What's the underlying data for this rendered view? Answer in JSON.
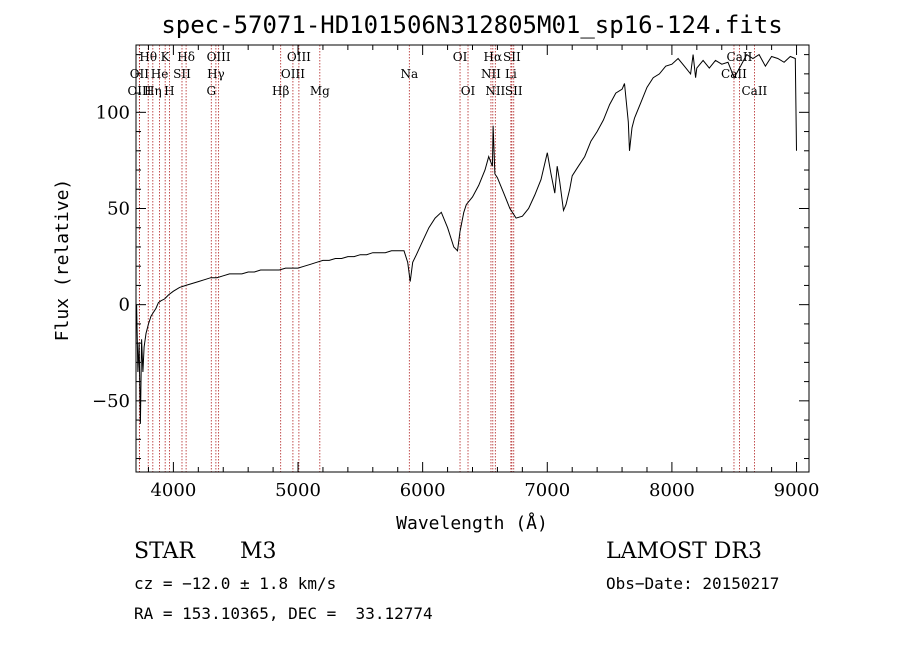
{
  "chart_data": {
    "type": "line",
    "title": "spec-57071-HD101506N312805M01_sp16-124.fits",
    "xlabel": "Wavelength (Å)",
    "ylabel": "Flux (relative)",
    "xlim": [
      3700,
      9100
    ],
    "ylim": [
      -87,
      135
    ],
    "x_ticks": [
      4000,
      5000,
      6000,
      7000,
      8000,
      9000
    ],
    "y_ticks": [
      -50,
      0,
      50,
      100
    ],
    "grid": false,
    "series": [
      {
        "color": "#000000",
        "x": [
          3705,
          3715,
          3725,
          3735,
          3745,
          3755,
          3765,
          3780,
          3800,
          3820,
          3840,
          3860,
          3880,
          3900,
          3930,
          3960,
          4000,
          4050,
          4100,
          4150,
          4200,
          4250,
          4300,
          4350,
          4400,
          4450,
          4500,
          4550,
          4600,
          4650,
          4700,
          4750,
          4800,
          4850,
          4900,
          4950,
          5000,
          5050,
          5100,
          5150,
          5200,
          5250,
          5300,
          5350,
          5400,
          5450,
          5500,
          5550,
          5600,
          5650,
          5700,
          5750,
          5800,
          5850,
          5880,
          5900,
          5920,
          5950,
          6000,
          6050,
          6100,
          6150,
          6200,
          6250,
          6280,
          6300,
          6330,
          6350,
          6400,
          6450,
          6500,
          6530,
          6560,
          6565,
          6580,
          6600,
          6650,
          6700,
          6750,
          6800,
          6850,
          6900,
          6950,
          7000,
          7030,
          7060,
          7080,
          7100,
          7130,
          7150,
          7180,
          7200,
          7250,
          7300,
          7350,
          7400,
          7450,
          7500,
          7550,
          7600,
          7620,
          7650,
          7660,
          7680,
          7700,
          7750,
          7800,
          7850,
          7900,
          7950,
          8000,
          8050,
          8100,
          8150,
          8170,
          8190,
          8200,
          8250,
          8300,
          8350,
          8400,
          8450,
          8500,
          8550,
          8600,
          8650,
          8700,
          8750,
          8800,
          8850,
          8900,
          8950,
          8990,
          9000
        ],
        "y": [
          0,
          -35,
          -20,
          -62,
          -18,
          -35,
          -22,
          -15,
          -10,
          -6,
          -4,
          -2,
          1,
          2,
          3,
          5,
          7,
          9,
          10,
          11,
          12,
          13,
          14,
          14,
          15,
          16,
          16,
          16,
          17,
          17,
          18,
          18,
          18,
          18,
          19,
          19,
          19,
          20,
          21,
          22,
          23,
          23,
          24,
          24,
          25,
          25,
          26,
          26,
          27,
          27,
          27,
          28,
          28,
          28,
          22,
          12,
          22,
          26,
          33,
          40,
          45,
          48,
          40,
          30,
          28,
          38,
          48,
          52,
          56,
          62,
          70,
          77,
          72,
          93,
          68,
          66,
          58,
          50,
          45,
          46,
          50,
          57,
          65,
          79,
          68,
          58,
          72,
          64,
          49,
          52,
          60,
          67,
          72,
          77,
          85,
          90,
          96,
          104,
          110,
          112,
          115,
          95,
          80,
          92,
          97,
          105,
          113,
          118,
          120,
          124,
          125,
          128,
          124,
          120,
          130,
          118,
          123,
          127,
          123,
          127,
          125,
          126,
          118,
          124,
          130,
          128,
          130,
          124,
          129,
          128,
          126,
          129,
          128,
          80
        ]
      }
    ],
    "line_labels": [
      {
        "text": "Hθ",
        "row": 1,
        "wavelength": 3798
      },
      {
        "text": "K",
        "row": 1,
        "wavelength": 3934
      },
      {
        "text": "Hδ",
        "row": 1,
        "wavelength": 4102
      },
      {
        "text": "OIII",
        "row": 1,
        "wavelength": 4363
      },
      {
        "text": "OIII",
        "row": 1,
        "wavelength": 5007
      },
      {
        "text": "OI",
        "row": 1,
        "wavelength": 6300
      },
      {
        "text": "Hα",
        "row": 1,
        "wavelength": 6563
      },
      {
        "text": "SII",
        "row": 1,
        "wavelength": 6716
      },
      {
        "text": "CaII",
        "row": 1,
        "wavelength": 8542
      },
      {
        "text": "OII",
        "row": 2,
        "wavelength": 3727
      },
      {
        "text": "He",
        "row": 2,
        "wavelength": 3889
      },
      {
        "text": "SII",
        "row": 2,
        "wavelength": 4069
      },
      {
        "text": "Hγ",
        "row": 2,
        "wavelength": 4341
      },
      {
        "text": "OIII",
        "row": 2,
        "wavelength": 4959
      },
      {
        "text": "Na",
        "row": 2,
        "wavelength": 5893
      },
      {
        "text": "NII",
        "row": 2,
        "wavelength": 6548
      },
      {
        "text": "Li",
        "row": 2,
        "wavelength": 6708
      },
      {
        "text": "CaII",
        "row": 2,
        "wavelength": 8498
      },
      {
        "text": "OIII",
        "row": 3,
        "wavelength": 3728
      },
      {
        "text": "Hη",
        "row": 3,
        "wavelength": 3835
      },
      {
        "text": "H",
        "row": 3,
        "wavelength": 3968
      },
      {
        "text": "G",
        "row": 3,
        "wavelength": 4304
      },
      {
        "text": "Hβ",
        "row": 3,
        "wavelength": 4861
      },
      {
        "text": "Mg",
        "row": 3,
        "wavelength": 5175
      },
      {
        "text": "OI",
        "row": 3,
        "wavelength": 6364
      },
      {
        "text": "NII",
        "row": 3,
        "wavelength": 6583
      },
      {
        "text": "SII",
        "row": 3,
        "wavelength": 6731
      },
      {
        "text": "CaII",
        "row": 3,
        "wavelength": 8662
      }
    ],
    "line_color": "#b22222"
  },
  "info": {
    "class": "STAR",
    "subclass": "M3",
    "survey": "LAMOST DR3",
    "cz": "cz = −12.0 ± 1.8 km/s",
    "obs_date": "Obs−Date: 20150217",
    "coords": "RA = 153.10365, DEC =  33.12774"
  }
}
